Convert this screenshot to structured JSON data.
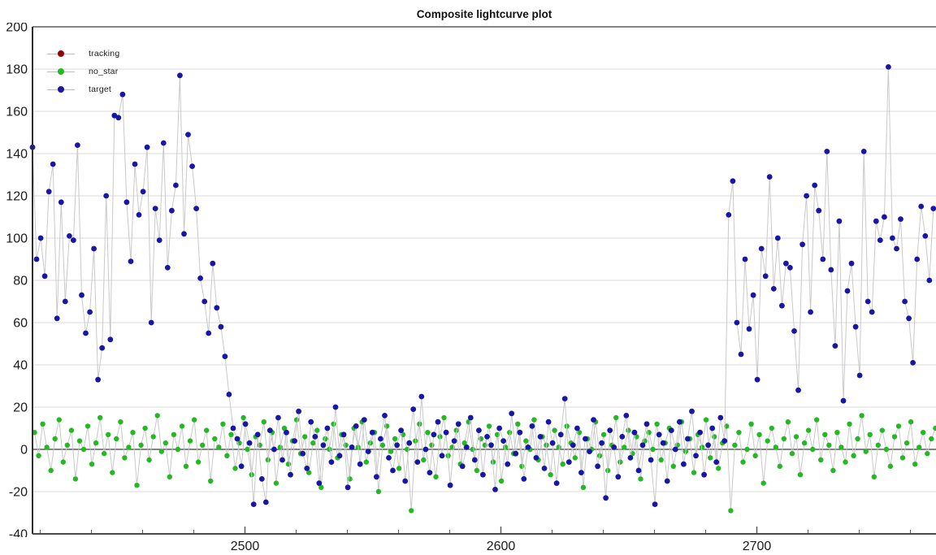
{
  "chart_data": {
    "type": "scatter",
    "title": "Composite lightcurve plot",
    "xlabel": "",
    "ylabel": "",
    "xlim": [
      2417,
      2770
    ],
    "ylim": [
      -40,
      200
    ],
    "xticks": [
      2500,
      2600,
      2700
    ],
    "xtick_minor_step": 20,
    "yticks": [
      -40,
      -20,
      0,
      20,
      40,
      60,
      80,
      100,
      120,
      140,
      160,
      180,
      200
    ],
    "grid": "horizontal",
    "grid_color": "#d9d9d9",
    "zero_line_color": "#3a3a3a",
    "marker_line_color": "#c9c9c9",
    "legend_position": "top-left",
    "series": [
      {
        "name": "tracking",
        "color": "#990000",
        "x_start": 2417.0,
        "x_step": 1.6,
        "values": []
      },
      {
        "name": "no_star",
        "color": "#25b825",
        "x_start": 2417.8,
        "x_step": 1.6,
        "values": [
          8,
          -3,
          12,
          1,
          -10,
          5,
          14,
          -6,
          2,
          9,
          -14,
          4,
          0,
          11,
          -7,
          3,
          15,
          -2,
          7,
          -11,
          5,
          13,
          -4,
          1,
          8,
          -17,
          2,
          10,
          -5,
          6,
          16,
          -1,
          3,
          -13,
          7,
          0,
          11,
          -8,
          4,
          14,
          -6,
          2,
          9,
          -15,
          5,
          1,
          12,
          -3,
          7,
          -9,
          3,
          15,
          0,
          -12,
          6,
          2,
          13,
          -5,
          8,
          -16,
          1,
          10,
          -7,
          4,
          14,
          -2,
          6,
          -11,
          3,
          9,
          -18,
          5,
          0,
          12,
          -4,
          7,
          2,
          -14,
          10,
          1,
          13,
          -6,
          3,
          8,
          -20,
          2,
          11,
          -1,
          5,
          -9,
          7,
          0,
          -29,
          4,
          12,
          -5,
          8,
          2,
          -13,
          6,
          15,
          -3,
          1,
          9,
          -7,
          3,
          13,
          0,
          -10,
          5,
          2,
          11,
          -6,
          7,
          -15,
          1,
          8,
          -2,
          12,
          -8,
          4,
          0,
          14,
          -5,
          6,
          2,
          -12,
          9,
          1,
          -7,
          11,
          3,
          -4,
          8,
          -18,
          5,
          0,
          13,
          -3,
          7,
          -10,
          2,
          15,
          -6,
          1,
          9,
          -2,
          6,
          -14,
          4,
          8,
          0,
          12,
          -5,
          3,
          10,
          -8,
          2,
          13,
          -1,
          5,
          -11,
          7,
          1,
          14,
          -4,
          6,
          -9,
          3,
          11,
          -29,
          2,
          8,
          -6,
          0,
          12,
          -3,
          7,
          -16,
          4,
          10,
          1,
          -8,
          5,
          13,
          -2,
          6,
          -12,
          3,
          9,
          0,
          14,
          -5,
          7,
          2,
          -10,
          8,
          1,
          -6,
          12,
          -3,
          5,
          16,
          -1,
          7,
          -13,
          2,
          9,
          0,
          -8,
          6,
          11,
          -4,
          3,
          13,
          -7,
          1,
          8,
          -2,
          5,
          10
        ]
      },
      {
        "name": "target",
        "color": "#1717a6",
        "x_start": 2417.0,
        "x_step": 1.6,
        "values": [
          143,
          90,
          100,
          82,
          122,
          135,
          62,
          117,
          70,
          101,
          99,
          144,
          73,
          55,
          65,
          95,
          33,
          48,
          120,
          52,
          158,
          157,
          168,
          117,
          89,
          135,
          111,
          122,
          143,
          60,
          114,
          99,
          145,
          86,
          113,
          125,
          177,
          102,
          149,
          134,
          114,
          81,
          70,
          55,
          88,
          67,
          58,
          44,
          26,
          10,
          5,
          -8,
          12,
          3,
          -26,
          7,
          -14,
          -25,
          9,
          0,
          15,
          -5,
          8,
          -12,
          4,
          18,
          -2,
          -9,
          13,
          6,
          -16,
          2,
          10,
          -6,
          20,
          -3,
          7,
          -18,
          1,
          11,
          -7,
          14,
          -1,
          8,
          -13,
          5,
          16,
          -4,
          -10,
          2,
          9,
          -15,
          3,
          19,
          -6,
          25,
          0,
          -11,
          7,
          13,
          -3,
          8,
          -17,
          4,
          12,
          -8,
          1,
          15,
          -5,
          9,
          -12,
          6,
          2,
          -19,
          10,
          4,
          -7,
          17,
          -2,
          8,
          -14,
          1,
          11,
          -4,
          6,
          -9,
          13,
          3,
          -16,
          7,
          24,
          -6,
          2,
          10,
          -11,
          5,
          -1,
          14,
          -8,
          3,
          -23,
          9,
          1,
          -13,
          6,
          16,
          -4,
          8,
          -10,
          2,
          12,
          -5,
          -26,
          7,
          3,
          -15,
          9,
          0,
          13,
          -7,
          5,
          18,
          -3,
          8,
          -12,
          2,
          10,
          -6,
          15,
          4,
          111,
          127,
          60,
          45,
          90,
          57,
          73,
          33,
          95,
          82,
          129,
          76,
          100,
          68,
          88,
          86,
          56,
          28,
          97,
          120,
          65,
          125,
          113,
          90,
          141,
          85,
          49,
          108,
          23,
          75,
          88,
          58,
          35,
          141,
          70,
          65,
          108,
          99,
          110,
          181,
          100,
          95,
          109,
          70,
          62,
          41,
          90,
          115,
          101,
          80,
          114
        ]
      }
    ]
  }
}
